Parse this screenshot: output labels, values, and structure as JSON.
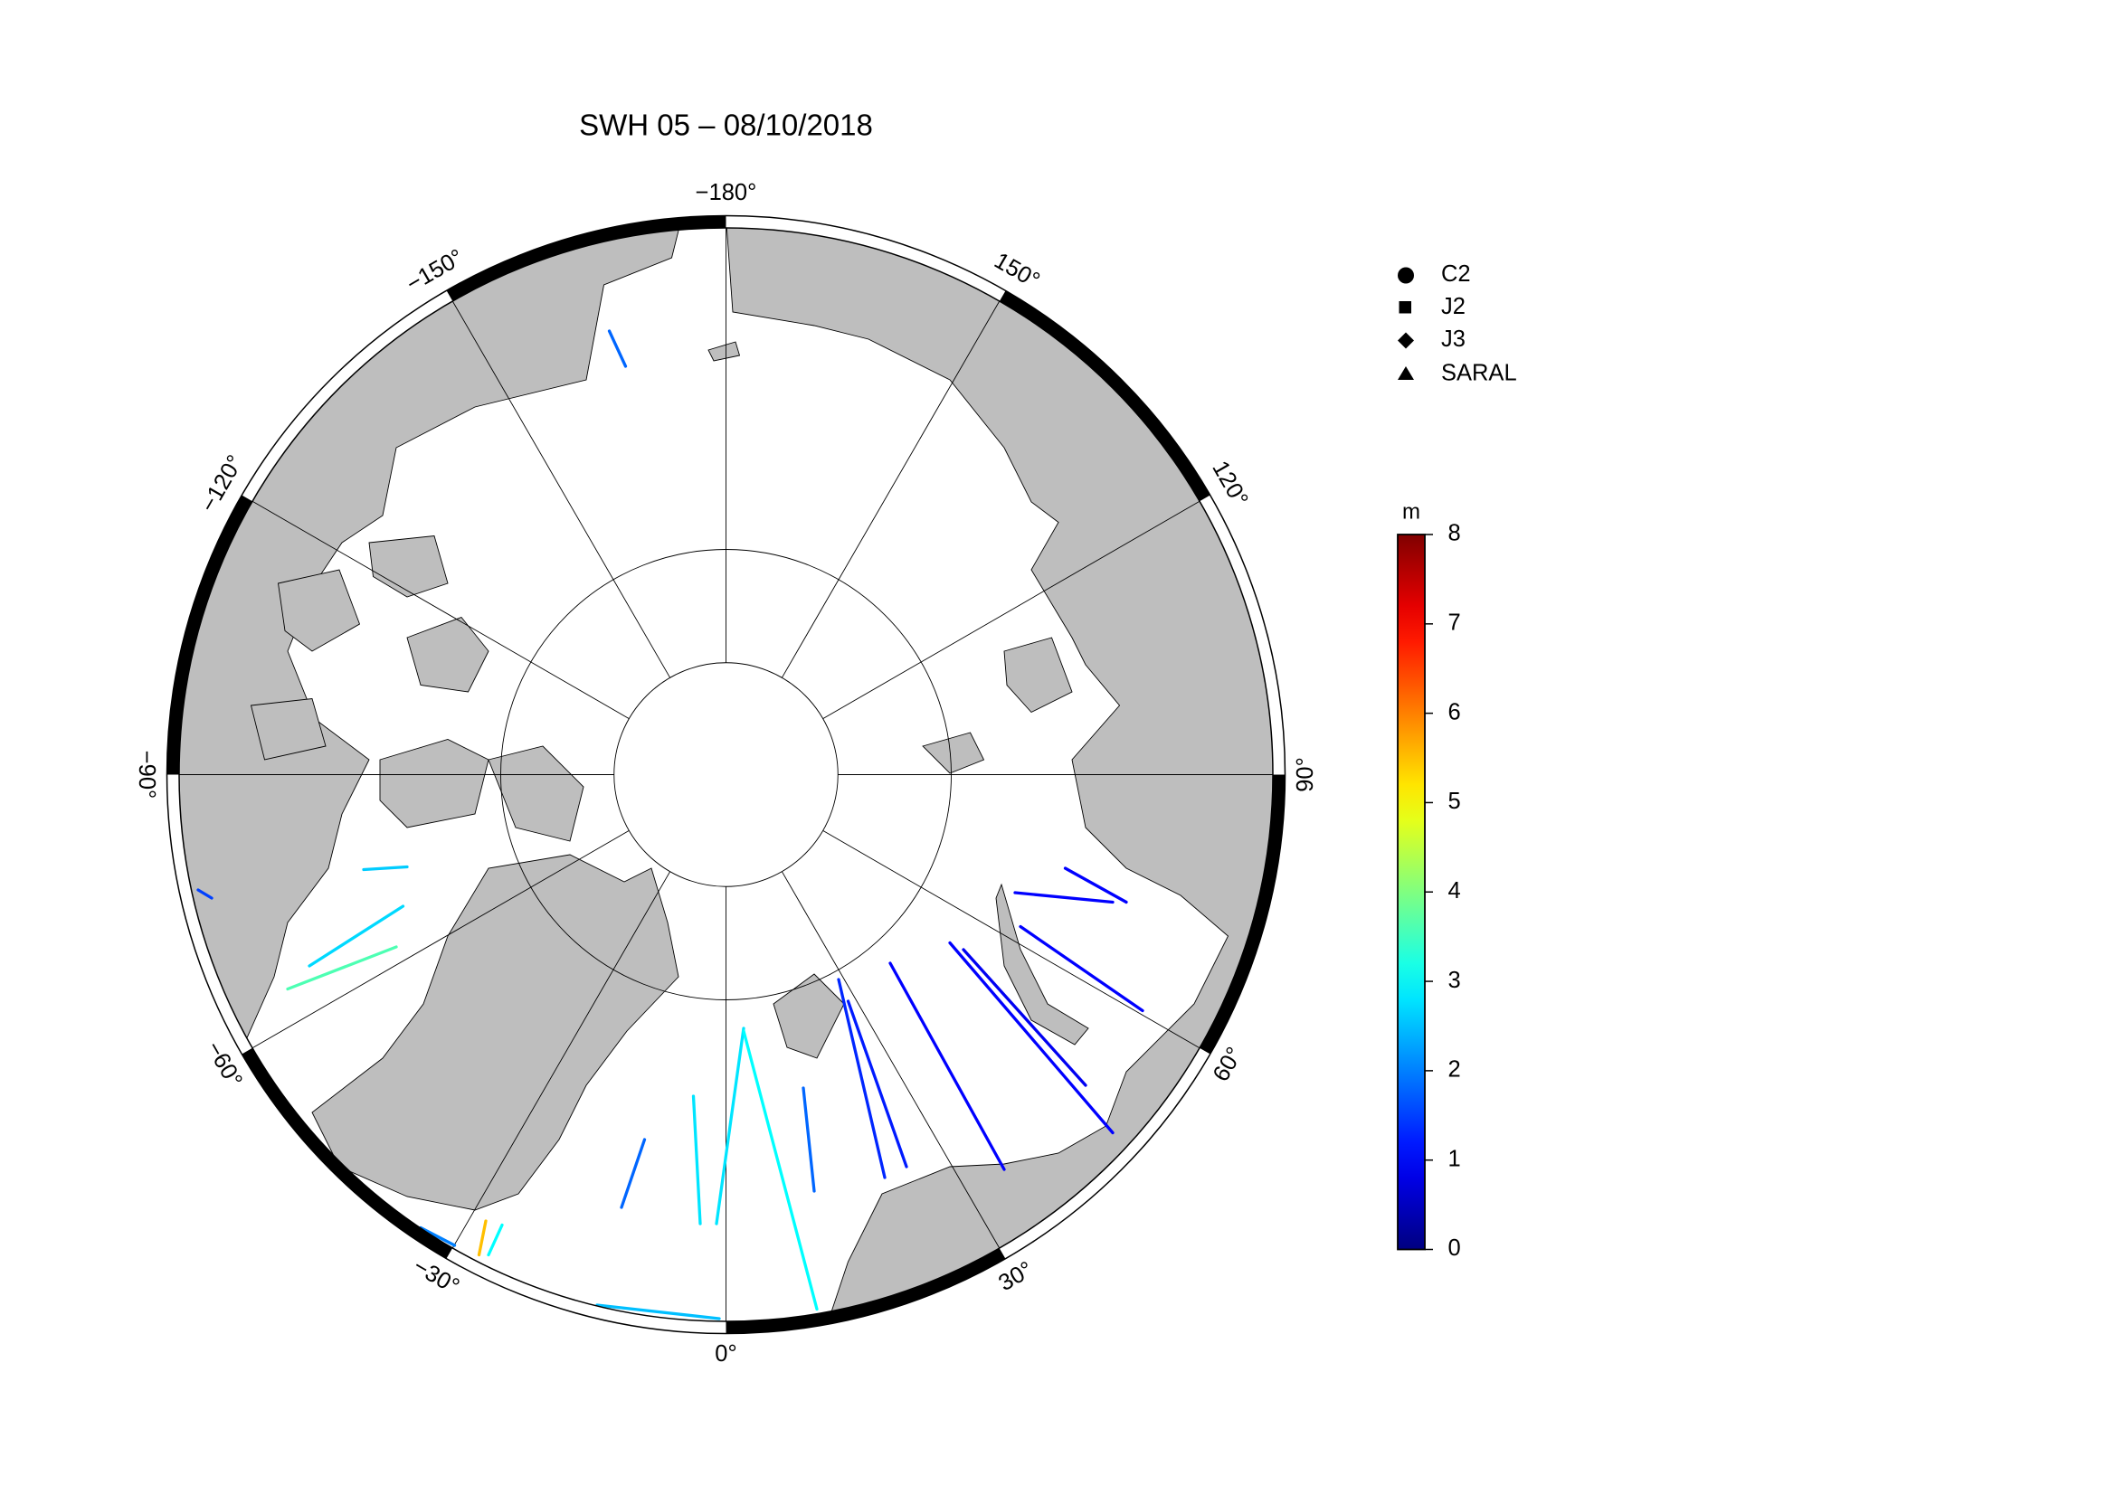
{
  "title": "SWH 05 – 08/10/2018",
  "map": {
    "meridians": [
      {
        "value": -180,
        "label": "−180°"
      },
      {
        "value": -150,
        "label": "−150°"
      },
      {
        "value": -120,
        "label": "−120°"
      },
      {
        "value": -90,
        "label": "−90°"
      },
      {
        "value": -60,
        "label": "−60°"
      },
      {
        "value": -30,
        "label": "−30°"
      },
      {
        "value": 0,
        "label": "0°"
      },
      {
        "value": 30,
        "label": "30°"
      },
      {
        "value": 60,
        "label": "60°"
      },
      {
        "value": 90,
        "label": "90°"
      },
      {
        "value": 120,
        "label": "120°"
      },
      {
        "value": 150,
        "label": "150°"
      }
    ]
  },
  "legend": [
    "C2",
    "J2",
    "J3",
    "SARAL"
  ],
  "colorbar": {
    "unit": "m",
    "lim": [
      0,
      8
    ],
    "ticks": [
      0,
      1,
      2,
      3,
      4,
      5,
      6,
      7,
      8
    ]
  },
  "tracks": [
    {
      "swh": 2.8
    },
    {
      "swh": 3.0
    },
    {
      "swh": 2.8
    },
    {
      "swh": 1.8
    },
    {
      "swh": 1.8
    },
    {
      "swh": 1.3
    },
    {
      "swh": 1.2
    },
    {
      "swh": 1.0
    },
    {
      "swh": 1.0
    },
    {
      "swh": 0.9
    },
    {
      "swh": 1.0
    },
    {
      "swh": 1.0
    },
    {
      "swh": 1.0
    },
    {
      "swh": 2.7
    },
    {
      "swh": 3.6
    },
    {
      "swh": 2.6
    },
    {
      "swh": 1.5
    },
    {
      "swh": 1.8
    },
    {
      "swh": 5.5
    },
    {
      "swh": 3.0
    },
    {
      "swh": 2.5
    },
    {
      "swh": 2.0
    }
  ]
}
